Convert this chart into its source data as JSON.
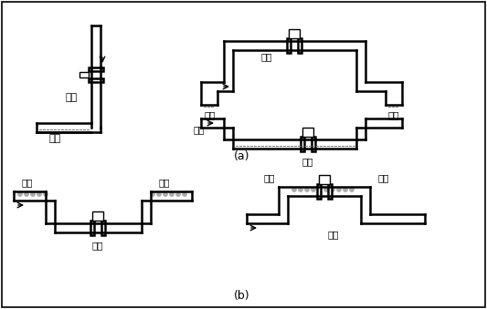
{
  "bg_color": "white",
  "line_color": "black",
  "lw": 1.8,
  "lw_thin": 1.0,
  "title_a": "(a)",
  "title_b": "(b)",
  "labels": {
    "correct": "正确",
    "wrong": "错误",
    "liquid": "液体",
    "bubble": "气泡"
  },
  "fig_w": 5.33,
  "fig_h": 3.39,
  "dpi": 100
}
